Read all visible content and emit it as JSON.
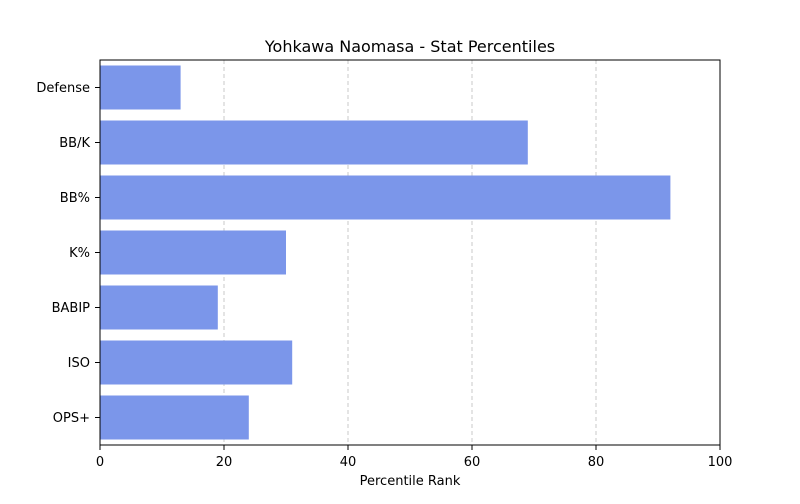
{
  "chart_data": {
    "type": "bar",
    "orientation": "horizontal",
    "title": "Yohkawa Naomasa - Stat Percentiles",
    "xlabel": "Percentile Rank",
    "ylabel": "",
    "categories": [
      "OPS+",
      "ISO",
      "BABIP",
      "K%",
      "BB%",
      "BB/K",
      "Defense"
    ],
    "values": [
      24,
      31,
      19,
      30,
      92,
      69,
      13
    ],
    "xlim": [
      0,
      100
    ],
    "xticks": [
      0,
      20,
      40,
      60,
      80,
      100
    ],
    "grid": "x-dashed",
    "bar_color": "#7b96ea"
  }
}
